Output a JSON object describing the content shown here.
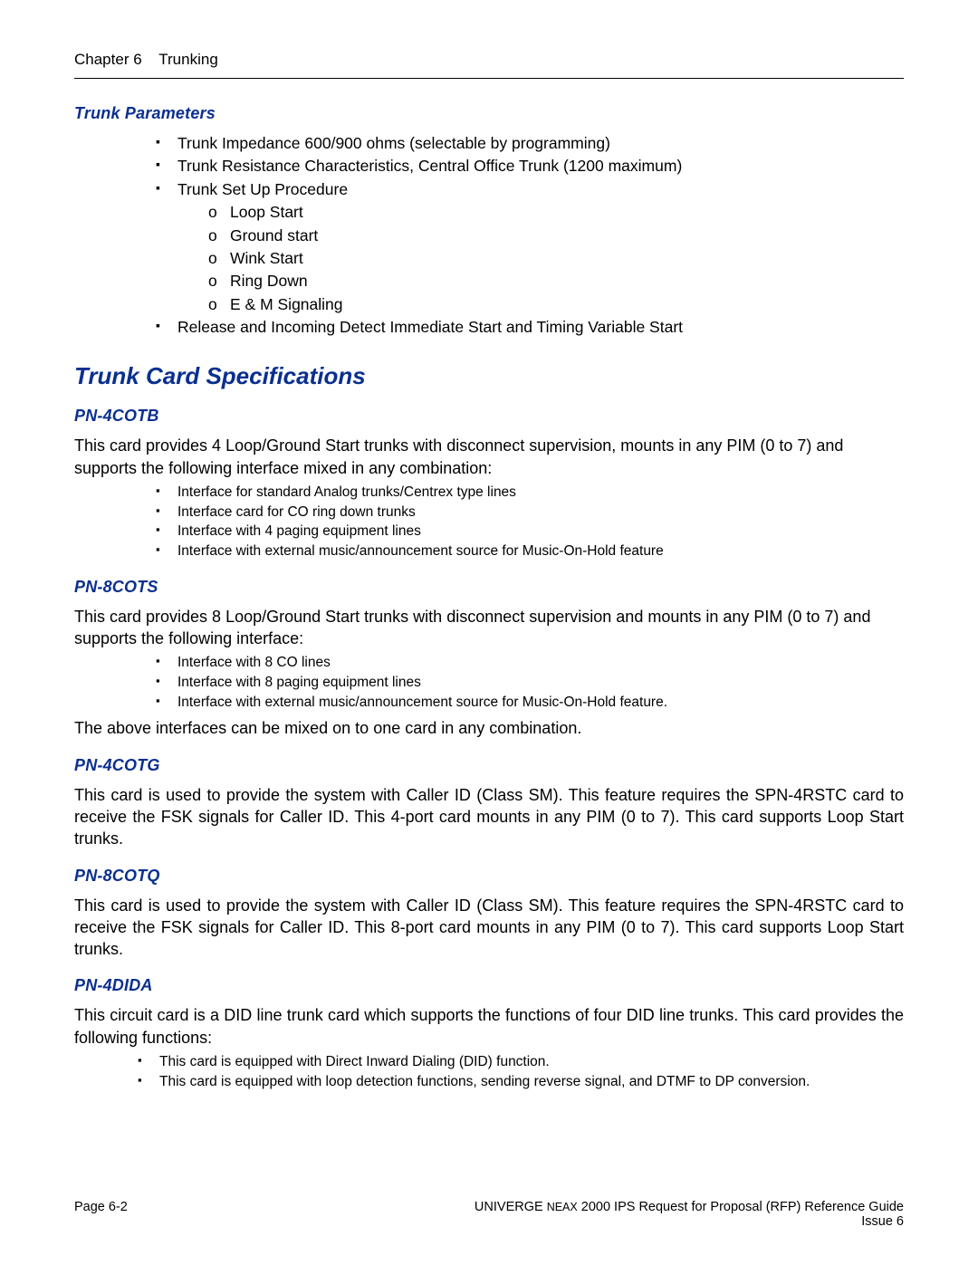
{
  "header": {
    "chapter_label": "Chapter 6",
    "chapter_title": "Trunking"
  },
  "colors": {
    "heading_blue": "#0a2f8f",
    "text": "#000000",
    "background": "#ffffff"
  },
  "trunk_parameters": {
    "heading": "Trunk Parameters",
    "items": [
      "Trunk Impedance 600/900 ohms (selectable by programming)",
      "Trunk Resistance Characteristics, Central Office Trunk (1200      maximum)",
      "Trunk Set Up Procedure",
      "Release and Incoming Detect Immediate Start and Timing Variable Start"
    ],
    "setup_subitems": [
      "Loop Start",
      "Ground start",
      "Wink Start",
      "Ring Down",
      "E & M Signaling"
    ]
  },
  "main_heading": "Trunk Card Specifications",
  "cards": {
    "cotb": {
      "heading": "PN-4COTB",
      "intro": "This card provides 4 Loop/Ground Start trunks with disconnect supervision, mounts in any PIM (0 to 7) and supports the following interface mixed in any combination:",
      "bullets": [
        "Interface for standard Analog trunks/Centrex type lines",
        "Interface card for CO ring down trunks",
        "Interface with 4 paging equipment lines",
        "Interface with external music/announcement source for Music-On-Hold feature"
      ]
    },
    "cots": {
      "heading": "PN-8COTS",
      "intro": "This card provides 8 Loop/Ground Start trunks with disconnect supervision and mounts in any PIM (0 to 7) and supports the following interface:",
      "bullets": [
        "Interface with 8 CO lines",
        "Interface with 8 paging equipment lines",
        "Interface with external music/announcement source for Music-On-Hold feature."
      ],
      "outro": "The above interfaces can be mixed on to one card in any combination."
    },
    "cotg": {
      "heading": "PN-4COTG",
      "body": "This card is used to provide the system with Caller ID (Class SM).  This feature requires the SPN-4RSTC card to receive the FSK signals for Caller ID.  This 4-port card mounts in any PIM (0 to 7).  This card supports Loop Start trunks."
    },
    "cotq": {
      "heading": "PN-8COTQ",
      "body": "This card is used to provide the system with Caller ID (Class SM).  This feature requires the SPN-4RSTC card to receive the FSK signals for Caller ID.  This 8-port card mounts in any PIM (0 to 7).  This card supports Loop Start trunks."
    },
    "dida": {
      "heading": "PN-4DIDA",
      "intro": "This circuit card is a DID line trunk card which supports the functions of four DID line trunks.  This card provides the following functions:",
      "bullets": [
        "This card is equipped with Direct Inward Dialing (DID) function.",
        "This card is equipped with loop detection functions, sending reverse signal, and DTMF to DP conversion."
      ]
    }
  },
  "footer": {
    "page_label": "Page 6-2",
    "doc_title_1": "UNIVERGE ",
    "doc_title_2": "NEAX",
    "doc_title_3": " 2000 IPS Request for Proposal (RFP) Reference Guide",
    "issue": "Issue 6"
  }
}
